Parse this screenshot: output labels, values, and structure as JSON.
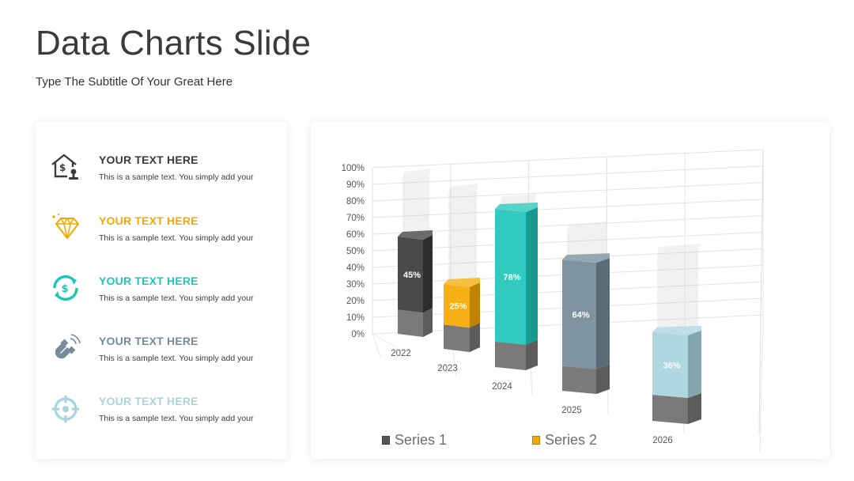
{
  "slide": {
    "title": "Data Charts Slide",
    "subtitle": "Type The Subtitle Of Your Great Here"
  },
  "items": [
    {
      "title": "YOUR TEXT HERE",
      "text": "This is a sample text. You simply add your",
      "color": "#3b3b3b",
      "icon": "house-money-icon"
    },
    {
      "title": "YOUR TEXT HERE",
      "text": "This is a sample text. You simply add your",
      "color": "#f5a800",
      "icon": "diamond-icon"
    },
    {
      "title": "YOUR TEXT HERE",
      "text": "This is a sample text. You simply add your",
      "color": "#1ec6b8",
      "icon": "dollar-exchange-icon"
    },
    {
      "title": "YOUR TEXT HERE",
      "text": "This is a sample text. You simply add your",
      "color": "#748b99",
      "icon": "magnet-icon"
    },
    {
      "title": "YOUR TEXT HERE",
      "text": "This is a sample text. You simply add your",
      "color": "#a8d3df",
      "icon": "target-icon"
    }
  ],
  "chart_data": {
    "type": "bar",
    "categories": [
      "2022",
      "2023",
      "2024",
      "2025",
      "2026"
    ],
    "series": [
      {
        "name": "Series 1",
        "values": [
          15,
          15,
          15,
          15,
          15
        ],
        "color": "#7a7a7a"
      },
      {
        "name": "Series 2",
        "values": [
          45,
          25,
          78,
          64,
          36
        ]
      }
    ],
    "data_labels": [
      "45%",
      "25%",
      "78%",
      "64%",
      "36%"
    ],
    "bar_colors": [
      "#3a3a3a",
      "#f5a800",
      "#1ec6b8",
      "#748b99",
      "#a8d3df"
    ],
    "y_ticks": [
      "0%",
      "10%",
      "20%",
      "30%",
      "40%",
      "50%",
      "60%",
      "70%",
      "80%",
      "90%",
      "100%"
    ],
    "ylim": [
      0,
      100
    ],
    "grid": true,
    "legend": "bottom",
    "legend_colors": [
      "#555555",
      "#f5a800"
    ]
  }
}
